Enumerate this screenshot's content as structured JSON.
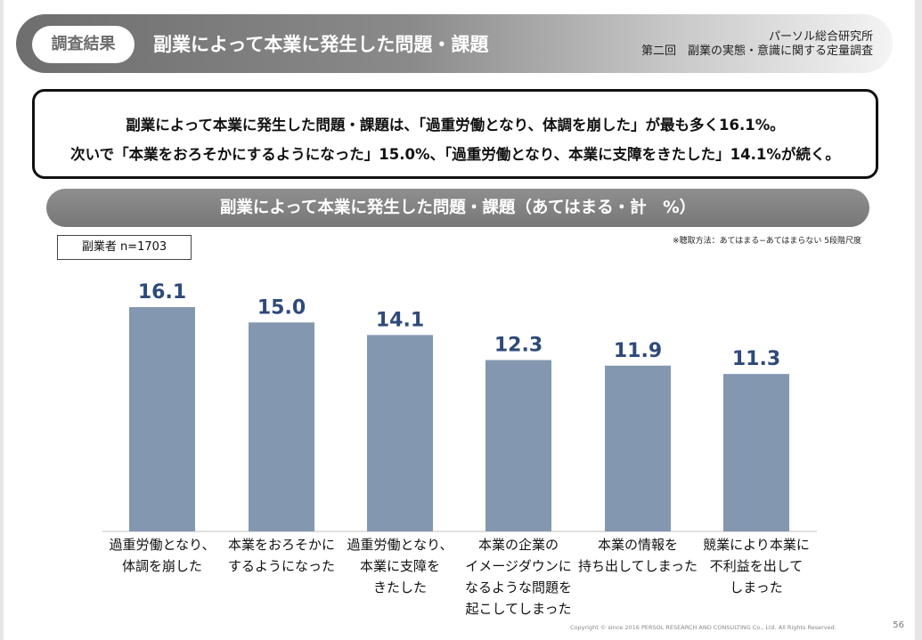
{
  "header": {
    "tag": "調査結果",
    "title": "副業によって本業に発生した問題・課題",
    "org": "パーソル総合研究所",
    "survey": "第二回　副業の実態・意識に関する定量調査"
  },
  "summary": {
    "line1": "副業によって本業に発生した問題・課題は、「過重労働となり、体調を崩した」が最も多く16.1%。",
    "line2": "次いで「本業をおろそかにするようになった」15.0%、「過重労働となり、本業に支障をきたした」14.1%が続く。"
  },
  "chart_title": "副業によって本業に発生した問題・課題（あてはまる・計　%）",
  "respondents": "副業者  n=1703",
  "method_note": "※聴取方法：あてはまる−あてはまらない 5段階尺度",
  "chart_data": {
    "type": "bar",
    "categories": [
      "過重労働となり、体調を崩した",
      "本業をおろそかにするようになった",
      "過重労働となり、本業に支障をきたした",
      "本業の企業のイメージダウンになるような問題を起こしてしまった",
      "本業の情報を持ち出してしまった",
      "競業により本業に不利益を出してしまった"
    ],
    "category_lines": [
      [
        "過重労働となり、",
        "体調を崩した"
      ],
      [
        "本業をおろそかに",
        "するようになった"
      ],
      [
        "過重労働となり、",
        "本業に支障を",
        "きたした"
      ],
      [
        "本業の企業の",
        "イメージダウンに",
        "なるような問題を",
        "起こしてしまった"
      ],
      [
        "本業の情報を",
        "持ち出してしまった"
      ],
      [
        "競業により本業に",
        "不利益を出して",
        "しまった"
      ]
    ],
    "values": [
      16.1,
      15.0,
      14.1,
      12.3,
      11.9,
      11.3
    ],
    "ylim": [
      0,
      20
    ],
    "bar_color": "#8497b0",
    "label_color": "#2f4a7a",
    "grid": false,
    "legend": "none"
  },
  "footer": {
    "copyright": "Copyright © since 2016  PERSOL  RESEARCH  AND  CONSULTING  Co., Ltd.  All  Rights  Reserved.",
    "page": "56"
  }
}
